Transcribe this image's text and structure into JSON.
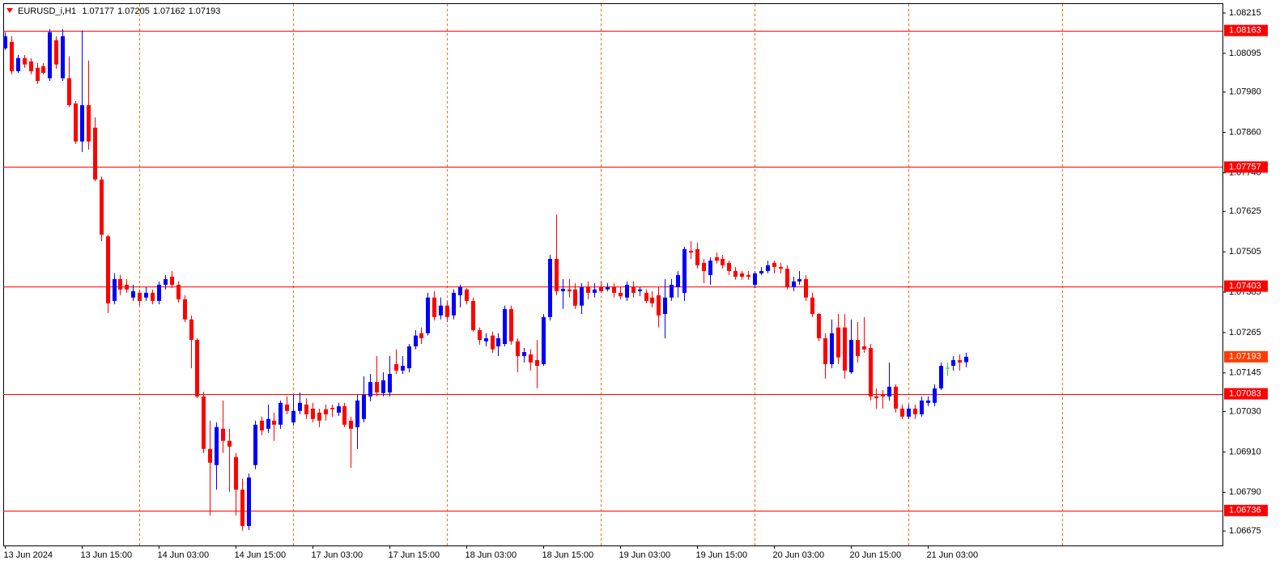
{
  "chart_data": {
    "type": "candlestick",
    "title": "EURUSD_i,H1",
    "bull_color": "#0000ff",
    "bear_color": "#ff0000",
    "doji_color": "#33cc33",
    "level_color": "#ff0000",
    "separator_color": "#ff6a00",
    "price_label_color": "#ff3c00",
    "ylim": [
      1.06632,
      1.08244
    ],
    "yticks": [
      1.08215,
      1.08095,
      {
        "value": 1.0798,
        "label": "1.07980"
      },
      {
        "value": 1.0786,
        "label": "1.07860"
      },
      {
        "value": 1.0774,
        "label": "1.07740"
      },
      1.07625,
      1.07505,
      1.07385,
      1.07265,
      1.07145,
      {
        "value": 1.0703,
        "label": "1.07030"
      },
      {
        "value": 1.0691,
        "label": "1.06910"
      },
      {
        "value": 1.0679,
        "label": "1.06790"
      },
      1.06675
    ],
    "levels": [
      1.08163,
      1.07757,
      1.07403,
      1.07083,
      1.06736
    ],
    "separators": [
      21,
      45,
      69,
      93,
      117,
      141,
      165
    ],
    "categories": [
      "13 Jun 2024",
      null,
      null,
      null,
      null,
      null,
      null,
      null,
      null,
      null,
      null,
      null,
      "13 Jun 15:00",
      null,
      null,
      null,
      null,
      null,
      null,
      null,
      null,
      null,
      null,
      null,
      "14 Jun 03:00",
      null,
      null,
      null,
      null,
      null,
      null,
      null,
      null,
      null,
      null,
      null,
      "14 Jun 15:00",
      null,
      null,
      null,
      null,
      null,
      null,
      null,
      null,
      null,
      null,
      null,
      "17 Jun 03:00",
      null,
      null,
      null,
      null,
      null,
      null,
      null,
      null,
      null,
      null,
      null,
      "17 Jun 15:00",
      null,
      null,
      null,
      null,
      null,
      null,
      null,
      null,
      null,
      null,
      null,
      "18 Jun 03:00",
      null,
      null,
      null,
      null,
      null,
      null,
      null,
      null,
      null,
      null,
      null,
      "18 Jun 15:00",
      null,
      null,
      null,
      null,
      null,
      null,
      null,
      null,
      null,
      null,
      null,
      "19 Jun 03:00",
      null,
      null,
      null,
      null,
      null,
      null,
      null,
      null,
      null,
      null,
      null,
      "19 Jun 15:00",
      null,
      null,
      null,
      null,
      null,
      null,
      null,
      null,
      null,
      null,
      null,
      "20 Jun 03:00",
      null,
      null,
      null,
      null,
      null,
      null,
      null,
      null,
      null,
      null,
      null,
      "20 Jun 15:00",
      null,
      null,
      null,
      null,
      null,
      null,
      null,
      null,
      null,
      null,
      null,
      "21 Jun 03:00",
      null,
      null,
      null,
      null,
      null,
      null
    ],
    "open": [
      1.0811,
      1.08129,
      1.08042,
      1.08081,
      1.08071,
      1.08052,
      1.08057,
      1.08021,
      1.08134,
      1.08021,
      1.08021,
      1.07946,
      1.07833,
      1.07941,
      1.07874,
      1.0772,
      1.07551,
      1.07359,
      1.07424,
      1.07407,
      1.07369,
      1.07383,
      1.07369,
      1.07383,
      1.07359,
      1.07407,
      1.07431,
      1.07407,
      1.07364,
      1.07304,
      1.07243,
      1.07075,
      1.06919,
      1.06871,
      1.06979,
      1.06943,
      1.06895,
      1.06798,
      1.0669,
      1.06871,
      1.07003,
      1.06979,
      1.07003,
      1.06991,
      1.07051,
      1.06998,
      1.07032,
      1.07051,
      1.07039,
      1.07027,
      1.07037,
      1.07041,
      1.07027,
      1.07046,
      1.07003,
      1.06984,
      1.07008,
      1.07075,
      1.07118,
      1.07085,
      1.07087,
      1.07171,
      1.07152,
      1.07159,
      1.07224,
      1.07263,
      1.07263,
      1.07369,
      1.07316,
      1.07345,
      1.07316,
      1.07376,
      1.07393,
      1.07359,
      1.07272,
      1.07239,
      1.07256,
      1.07224,
      1.07231,
      1.07335,
      1.07239,
      1.07195,
      1.072,
      1.07183,
      1.07171,
      1.07311,
      1.07484,
      1.07388,
      1.07393,
      1.07393,
      1.07345,
      1.074,
      1.07383,
      1.074,
      1.07393,
      1.074,
      1.07383,
      1.07369,
      1.074,
      1.07388,
      1.07383,
      1.07369,
      1.07376,
      1.0732,
      1.07369,
      1.074,
      1.07383,
      1.07508,
      1.07513,
      1.07472,
      1.07436,
      1.07489,
      1.07484,
      1.07472,
      1.07448,
      1.07441,
      1.07436,
      1.07407,
      1.07441,
      1.07448,
      1.07472,
      1.0746,
      1.07455,
      1.074,
      1.07417,
      1.07424,
      1.07369,
      1.0732,
      1.07248,
      1.07171,
      1.0728,
      1.0728,
      1.07147,
      1.07243,
      1.07224,
      1.07219,
      1.07075,
      1.0708,
      1.07075,
      1.07104,
      1.07039,
      1.07015,
      1.07039,
      1.07022,
      1.07056,
      1.07056,
      1.07099,
      1.07159,
      1.07166,
      1.07183,
      1.07177
    ],
    "high": [
      1.08158,
      1.08146,
      1.0809,
      1.0809,
      1.08081,
      1.08066,
      1.08066,
      1.08167,
      1.08146,
      1.08167,
      1.08086,
      1.07953,
      1.08163,
      1.08074,
      1.07905,
      1.07729,
      1.07556,
      1.07441,
      1.07436,
      1.07424,
      1.07407,
      1.07393,
      1.074,
      1.07393,
      1.07417,
      1.07436,
      1.07448,
      1.07417,
      1.07376,
      1.07316,
      1.07248,
      1.07089,
      1.07003,
      1.06998,
      1.07063,
      1.06979,
      1.06907,
      1.0683,
      1.06846,
      1.07003,
      1.07015,
      1.07051,
      1.07027,
      1.07063,
      1.07075,
      1.0708,
      1.07087,
      1.0707,
      1.07056,
      1.07039,
      1.07051,
      1.07051,
      1.07056,
      1.07056,
      1.07015,
      1.0708,
      1.07135,
      1.07142,
      1.07195,
      1.07147,
      1.07195,
      1.07215,
      1.07195,
      1.07231,
      1.07272,
      1.0728,
      1.07383,
      1.07388,
      1.07369,
      1.07359,
      1.07393,
      1.07407,
      1.07397,
      1.07369,
      1.0728,
      1.07263,
      1.07268,
      1.07263,
      1.07345,
      1.07345,
      1.07248,
      1.07219,
      1.07215,
      1.07243,
      1.0732,
      1.07496,
      1.07616,
      1.07424,
      1.07424,
      1.07412,
      1.07412,
      1.07417,
      1.07412,
      1.07417,
      1.07412,
      1.07412,
      1.074,
      1.07417,
      1.07417,
      1.074,
      1.07393,
      1.07388,
      1.074,
      1.07424,
      1.07424,
      1.07448,
      1.0752,
      1.07537,
      1.07532,
      1.07484,
      1.07489,
      1.07503,
      1.07496,
      1.07479,
      1.0746,
      1.07448,
      1.07448,
      1.07448,
      1.0746,
      1.07479,
      1.07479,
      1.07472,
      1.07465,
      1.07431,
      1.07448,
      1.07436,
      1.07383,
      1.07323,
      1.07263,
      1.07304,
      1.0732,
      1.0732,
      1.07304,
      1.07296,
      1.07311,
      1.07231,
      1.07099,
      1.07094,
      1.07176,
      1.07111,
      1.07051,
      1.07051,
      1.07051,
      1.07075,
      1.07075,
      1.07111,
      1.07176,
      1.07176,
      1.07195,
      1.072,
      1.07205
    ],
    "low": [
      1.08105,
      1.08033,
      1.08037,
      1.08052,
      1.08033,
      1.08004,
      1.08033,
      1.08013,
      1.08049,
      1.08013,
      1.07936,
      1.07826,
      1.07802,
      1.07809,
      1.07715,
      1.07537,
      1.07323,
      1.07349,
      1.07376,
      1.07383,
      1.07359,
      1.07345,
      1.07359,
      1.07349,
      1.07349,
      1.07393,
      1.07397,
      1.07354,
      1.07296,
      1.07159,
      1.0707,
      1.06907,
      1.06721,
      1.06798,
      1.06907,
      1.06791,
      1.06721,
      1.06676,
      1.06678,
      1.06859,
      1.0696,
      1.06967,
      1.06943,
      1.06979,
      1.07022,
      1.06988,
      1.07022,
      1.07008,
      1.06998,
      1.06984,
      1.07003,
      1.07015,
      1.07017,
      1.06984,
      1.06863,
      1.06919,
      1.06998,
      1.07061,
      1.07075,
      1.07075,
      1.07075,
      1.07142,
      1.07142,
      1.07147,
      1.07215,
      1.07231,
      1.07256,
      1.07301,
      1.07304,
      1.07296,
      1.07304,
      1.0734,
      1.07349,
      1.07268,
      1.07229,
      1.07224,
      1.07205,
      1.07195,
      1.07224,
      1.07229,
      1.07147,
      1.07176,
      1.07152,
      1.07099,
      1.07166,
      1.07301,
      1.07376,
      1.07335,
      1.07369,
      1.07335,
      1.0732,
      1.07364,
      1.07369,
      1.07383,
      1.07388,
      1.07369,
      1.07364,
      1.07359,
      1.07369,
      1.07373,
      1.07352,
      1.0734,
      1.0728,
      1.07248,
      1.07359,
      1.07369,
      1.07359,
      1.07484,
      1.07455,
      1.07412,
      1.07407,
      1.0747,
      1.07455,
      1.07436,
      1.07422,
      1.07422,
      1.07422,
      1.07397,
      1.07436,
      1.07441,
      1.07441,
      1.07441,
      1.07393,
      1.07388,
      1.07407,
      1.07359,
      1.07311,
      1.07239,
      1.07128,
      1.07159,
      1.07171,
      1.07128,
      1.07142,
      1.07176,
      1.07205,
      1.07063,
      1.07039,
      1.07039,
      1.07063,
      1.07027,
      1.07008,
      1.07008,
      1.07008,
      1.07015,
      1.07046,
      1.07046,
      1.07094,
      1.07135,
      1.07152,
      1.07152,
      1.07162
    ],
    "close": [
      1.08146,
      1.08042,
      1.08081,
      1.08062,
      1.08042,
      1.08013,
      1.08037,
      1.08158,
      1.08062,
      1.08146,
      1.07941,
      1.07833,
      1.07941,
      1.07833,
      1.0772,
      1.07556,
      1.07352,
      1.07424,
      1.07393,
      1.07393,
      1.07388,
      1.07359,
      1.07383,
      1.07359,
      1.07407,
      1.07424,
      1.07407,
      1.07364,
      1.07304,
      1.07243,
      1.07075,
      1.06919,
      1.06878,
      1.06984,
      1.06943,
      1.06926,
      1.06798,
      1.0669,
      1.06834,
      1.06991,
      1.06974,
      1.07008,
      1.06991,
      1.07056,
      1.07032,
      1.07032,
      1.07056,
      1.07022,
      1.07008,
      1.07003,
      1.07022,
      1.07037,
      1.07046,
      1.06991,
      1.06979,
      1.07063,
      1.0708,
      1.07118,
      1.07087,
      1.07123,
      1.07142,
      1.07152,
      1.07166,
      1.07224,
      1.07256,
      1.07248,
      1.07369,
      1.07311,
      1.07345,
      1.07311,
      1.07383,
      1.074,
      1.07359,
      1.07272,
      1.07243,
      1.07248,
      1.07215,
      1.07248,
      1.07335,
      1.07239,
      1.07195,
      1.07207,
      1.07176,
      1.07166,
      1.07311,
      1.07484,
      1.07388,
      1.07395,
      1.07388,
      1.07345,
      1.074,
      1.07383,
      1.07393,
      1.07388,
      1.074,
      1.07383,
      1.07373,
      1.07407,
      1.07383,
      1.07393,
      1.07359,
      1.07352,
      1.07316,
      1.07369,
      1.07407,
      1.07436,
      1.07513,
      1.07503,
      1.07465,
      1.07448,
      1.07479,
      1.07479,
      1.07465,
      1.07448,
      1.07431,
      1.07431,
      1.07431,
      1.07441,
      1.07448,
      1.07465,
      1.0746,
      1.07455,
      1.074,
      1.07417,
      1.07424,
      1.07369,
      1.0732,
      1.07248,
      1.07171,
      1.07263,
      1.07191,
      1.07152,
      1.07243,
      1.07195,
      1.07215,
      1.07075,
      1.0707,
      1.07075,
      1.07104,
      1.07039,
      1.07015,
      1.07039,
      1.07022,
      1.07063,
      1.07063,
      1.07099,
      1.07166,
      1.07159,
      1.07183,
      1.07176,
      1.07193
    ]
  }
}
